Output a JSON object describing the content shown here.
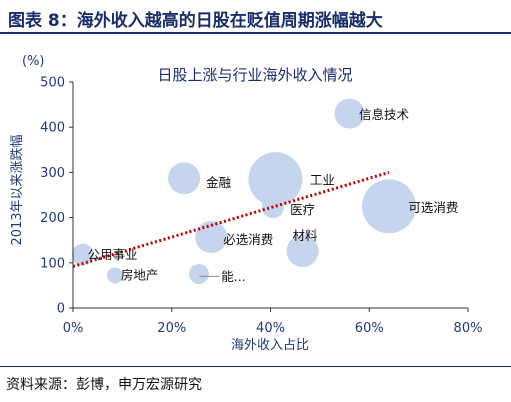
{
  "figure": {
    "title": "图表 8：海外收入越高的日股在贬值周期涨幅越大",
    "source": "资料来源：彭博，申万宏源研究"
  },
  "chart_data": {
    "type": "scatter",
    "title": "日股上涨与行业海外收入情况",
    "xlabel": "海外收入占比",
    "ylabel": "2013年以来涨跌幅",
    "yunit": "(%)",
    "xlim": [
      0,
      80
    ],
    "ylim": [
      0,
      500
    ],
    "xticks": [
      0,
      20,
      40,
      60,
      80
    ],
    "xtick_labels": [
      "0%",
      "20%",
      "40%",
      "60%",
      "80%"
    ],
    "yticks": [
      0,
      100,
      200,
      300,
      400,
      500
    ],
    "ytick_labels": [
      "0",
      "100",
      "200",
      "300",
      "400",
      "500"
    ],
    "grid": false,
    "legend": "none",
    "bubble_color": "#c5d5ee",
    "trend_color": "#c00000",
    "points": [
      {
        "label": "",
        "x": 2,
        "y": 118,
        "size": 11
      },
      {
        "label": "",
        "x": 8.5,
        "y": 72,
        "size": 8
      },
      {
        "label": "",
        "x": 22.5,
        "y": 287,
        "size": 16
      },
      {
        "label": "",
        "x": 25.5,
        "y": 75,
        "size": 10
      },
      {
        "label": "",
        "x": 28,
        "y": 157,
        "size": 16
      },
      {
        "label": "",
        "x": 40.5,
        "y": 223,
        "size": 11
      },
      {
        "label": "",
        "x": 41,
        "y": 285,
        "size": 27
      },
      {
        "label": "",
        "x": 46.5,
        "y": 126,
        "size": 16
      },
      {
        "label": "",
        "x": 56,
        "y": 430,
        "size": 15
      },
      {
        "label": "",
        "x": 64,
        "y": 225,
        "size": 27
      }
    ],
    "point_labels": [
      {
        "text": "信息技术",
        "x": 63,
        "y": 428
      },
      {
        "text": "工业",
        "x": 50.5,
        "y": 283
      },
      {
        "text": "金融",
        "x": 29.5,
        "y": 278
      },
      {
        "text": "可选消费",
        "x": 73,
        "y": 222
      },
      {
        "text": "医疗",
        "x": 46.5,
        "y": 218
      },
      {
        "text": "材料",
        "x": 47,
        "y": 160
      },
      {
        "text": "必选消费",
        "x": 35.5,
        "y": 152
      },
      {
        "text": "公用事业",
        "x": 8,
        "y": 118
      },
      {
        "text": "房地产",
        "x": 13.5,
        "y": 73
      },
      {
        "text": "能...",
        "x": 32.5,
        "y": 70
      }
    ],
    "trendline": {
      "x": [
        0,
        64
      ],
      "y": [
        92,
        300
      ]
    }
  }
}
